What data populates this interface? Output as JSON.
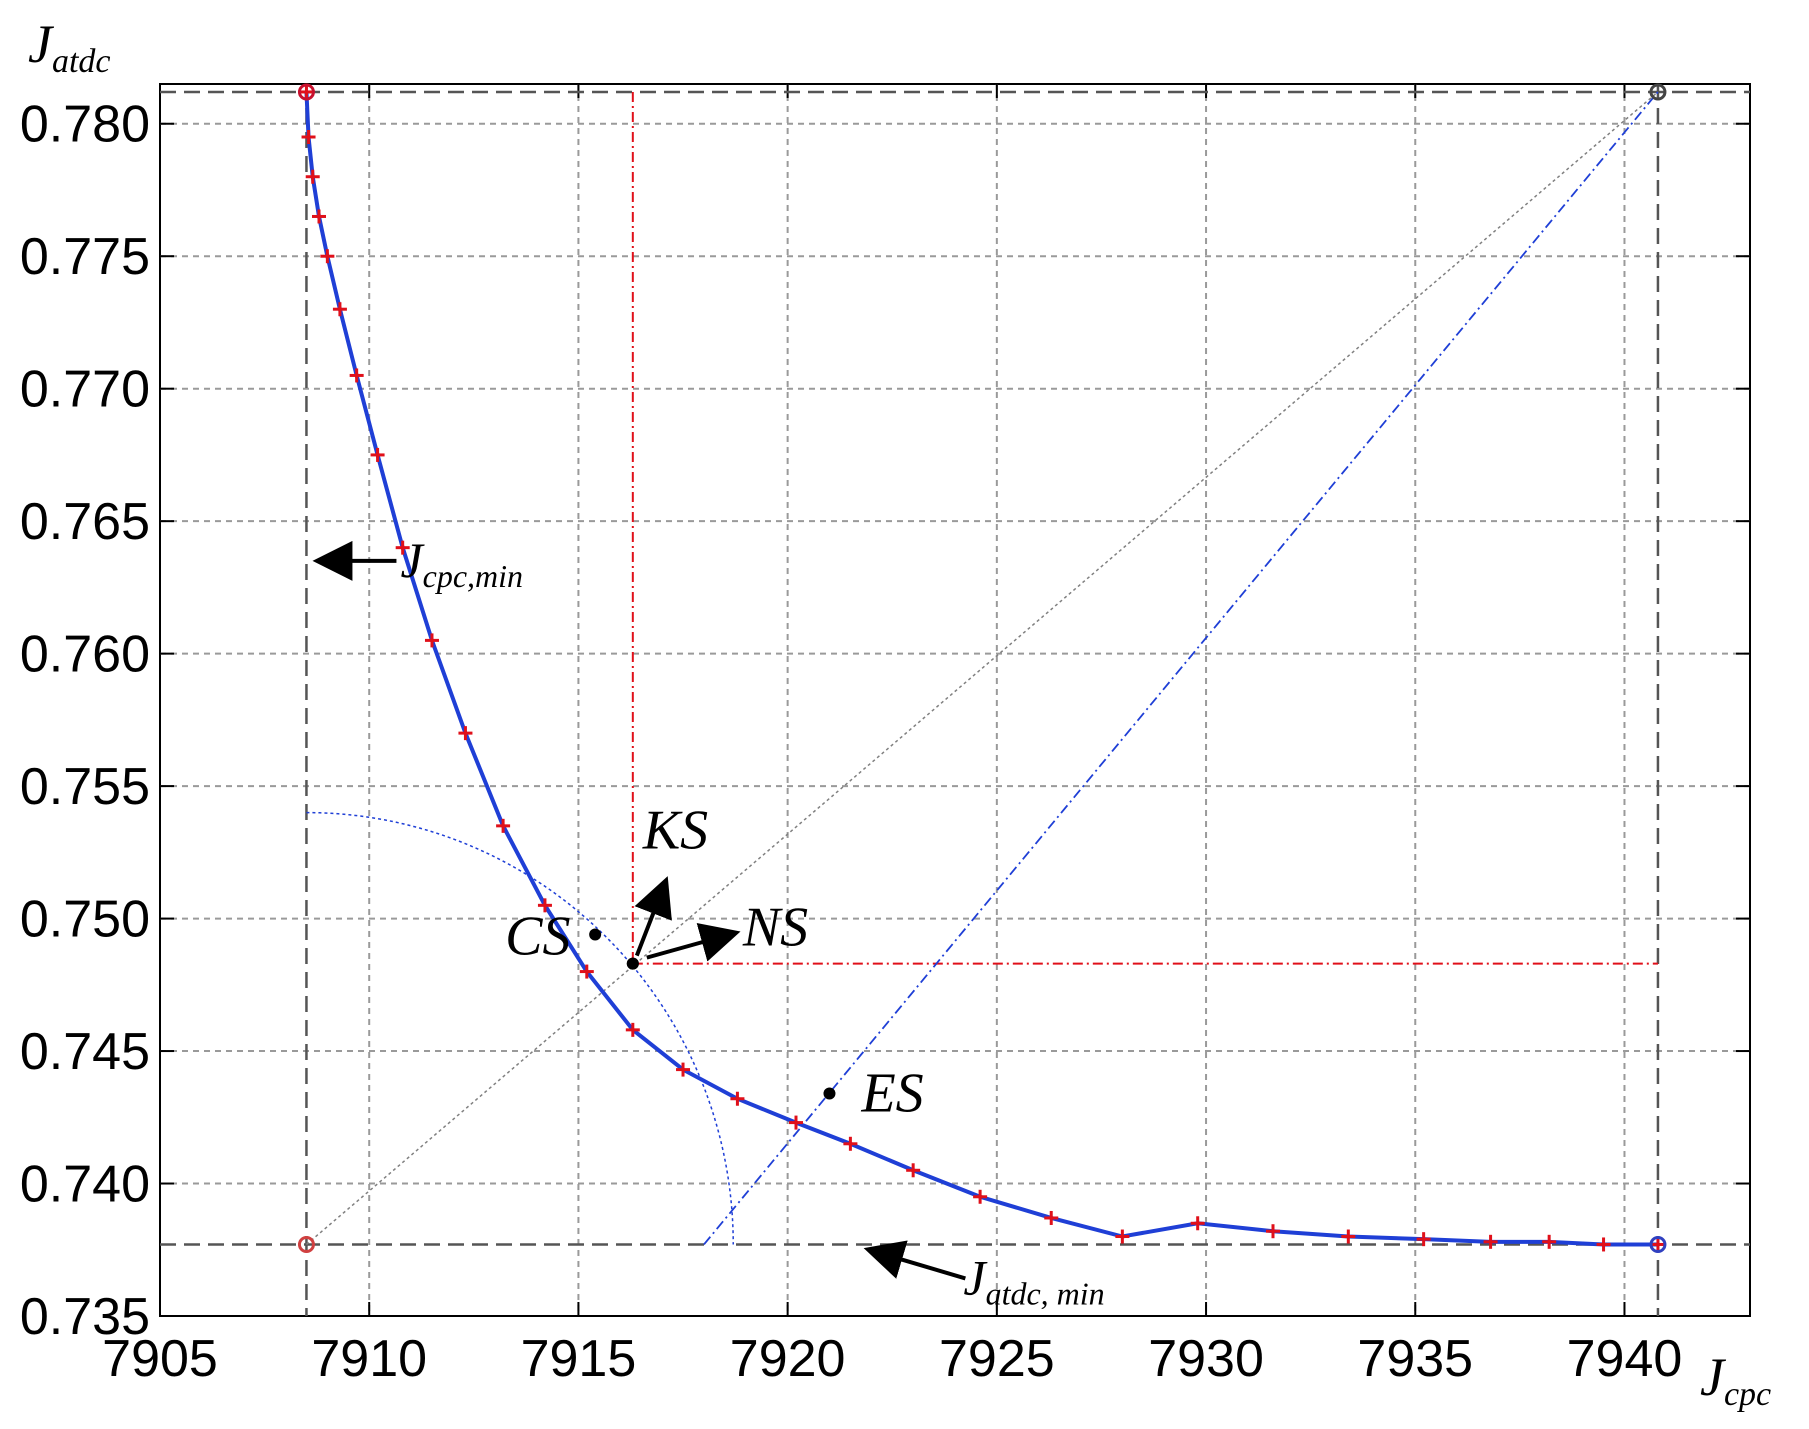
{
  "chart_data": {
    "type": "line",
    "xlim": [
      7905,
      7943
    ],
    "ylim": [
      0.735,
      0.7815
    ],
    "x_ticks": [
      7905,
      7910,
      7915,
      7920,
      7925,
      7930,
      7935,
      7940
    ],
    "y_ticks": [
      0.735,
      0.74,
      0.745,
      0.75,
      0.755,
      0.76,
      0.765,
      0.77,
      0.775,
      0.78
    ],
    "x_tick_labels": [
      "7905",
      "7910",
      "7915",
      "7920",
      "7925",
      "7930",
      "7935",
      "7940"
    ],
    "y_tick_labels": [
      "0.735",
      "0.740",
      "0.745",
      "0.750",
      "0.755",
      "0.760",
      "0.765",
      "0.770",
      "0.775",
      "0.780"
    ],
    "xlabel": {
      "main": "J",
      "sub": "cpc"
    },
    "ylabel": {
      "main": "J",
      "sub": "atdc"
    },
    "grid": true,
    "series": [
      {
        "kind": "pareto-front",
        "color": "#1f3fd6",
        "marker_color": "#e0101a",
        "x": [
          7908.5,
          7908.55,
          7908.65,
          7908.8,
          7909.0,
          7909.3,
          7909.7,
          7910.2,
          7910.8,
          7911.5,
          7912.3,
          7913.2,
          7914.2,
          7915.2,
          7916.3,
          7917.5,
          7918.8,
          7920.2,
          7921.5,
          7923.0,
          7924.6,
          7926.3,
          7928.0,
          7929.8,
          7931.6,
          7933.4,
          7935.2,
          7936.8,
          7938.2,
          7939.5,
          7940.8
        ],
        "y": [
          0.7812,
          0.7795,
          0.778,
          0.7765,
          0.775,
          0.773,
          0.7705,
          0.7675,
          0.764,
          0.7605,
          0.757,
          0.7535,
          0.7505,
          0.748,
          0.7458,
          0.7443,
          0.7432,
          0.7423,
          0.7415,
          0.7405,
          0.7395,
          0.7387,
          0.738,
          0.7385,
          0.7382,
          0.738,
          0.7379,
          0.7378,
          0.7378,
          0.7377,
          0.7377
        ]
      }
    ],
    "reference_lines": {
      "jcpc_min": 7908.5,
      "jatdc_min": 0.7377,
      "jcpc_max": 7940.8,
      "jatdc_max": 0.7812,
      "ks_x": 7916.3,
      "ks_y": 0.7483
    },
    "points": [
      {
        "label": "CS",
        "x": 7915.4,
        "y": 0.7494
      },
      {
        "label": "KS",
        "x": 7916.3,
        "y": 0.7483
      },
      {
        "label": "NS",
        "x": 7916.3,
        "y": 0.7483
      },
      {
        "label": "ES",
        "x": 7921.0,
        "y": 0.7434
      }
    ],
    "annotations": [
      {
        "id": "ks",
        "text": "KS"
      },
      {
        "id": "cs",
        "text": "CS"
      },
      {
        "id": "ns",
        "text": "NS"
      },
      {
        "id": "es",
        "text": "ES"
      },
      {
        "id": "jcpc_min",
        "main": "J",
        "sub": "cpc,min"
      },
      {
        "id": "jatdc_min",
        "main": "J",
        "sub": "atdc, min"
      }
    ],
    "colors": {
      "front": "#1f3fd6",
      "markers": "#e0101a",
      "ks_lines": "#e0101a",
      "grid": "#9a9a9a",
      "guides": "#555555"
    }
  }
}
